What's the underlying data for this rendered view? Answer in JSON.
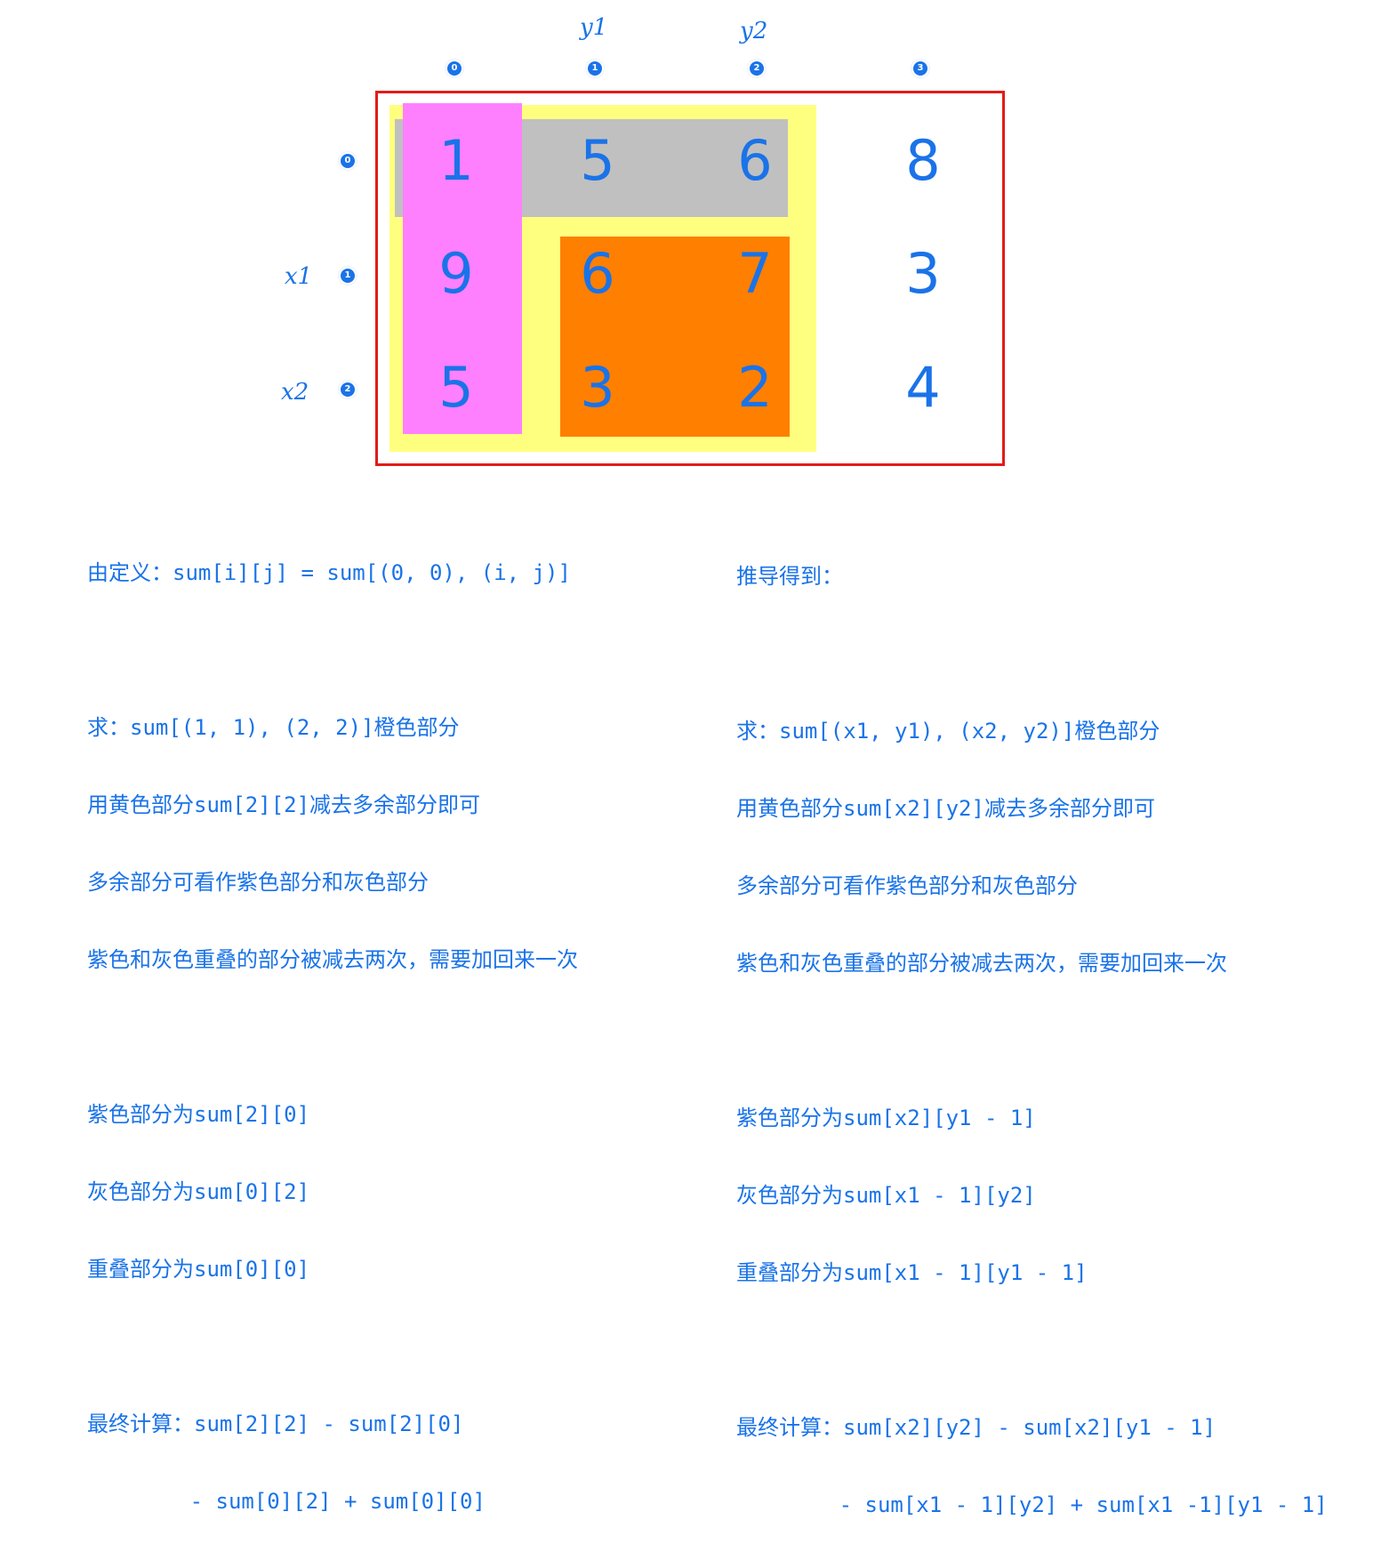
{
  "column_labels": {
    "y1": "y1",
    "y2": "y2"
  },
  "row_labels": {
    "x1": "x1",
    "x2": "x2"
  },
  "column_badges": [
    "0",
    "1",
    "2",
    "3"
  ],
  "row_badges": [
    "0",
    "1",
    "2"
  ],
  "matrix": [
    [
      "1",
      "5",
      "6",
      "8"
    ],
    [
      "9",
      "6",
      "7",
      "3"
    ],
    [
      "5",
      "3",
      "2",
      "4"
    ]
  ],
  "colors": {
    "frame": "#e21a1a",
    "yellow_region": "#ffff7f",
    "gray_region": "#c0c0c0",
    "orange_region": "#ff7f00",
    "purple_region": "#ff80ff",
    "text": "#1a73e8"
  },
  "left_text": {
    "line_1": "由定义：sum[i][j] = sum[(0, 0), (i, j)]",
    "line_2": "求：sum[(1, 1), (2, 2)]橙色部分",
    "line_3": "用黄色部分sum[2][2]减去多余部分即可",
    "line_4": "多余部分可看作紫色部分和灰色部分",
    "line_5": "紫色和灰色重叠的部分被减去两次，需要加回来一次",
    "line_6": "紫色部分为sum[2][0]",
    "line_7": "灰色部分为sum[0][2]",
    "line_8": "重叠部分为sum[0][0]",
    "line_9": "最终计算：sum[2][2] - sum[2][0]",
    "line_10": "        - sum[0][2] + sum[0][0]"
  },
  "right_text": {
    "line_1": "推导得到：",
    "line_2": "求：sum[(x1, y1), (x2, y2)]橙色部分",
    "line_3": "用黄色部分sum[x2][y2]减去多余部分即可",
    "line_4": "多余部分可看作紫色部分和灰色部分",
    "line_5": "紫色和灰色重叠的部分被减去两次，需要加回来一次",
    "line_6": "紫色部分为sum[x2][y1 - 1]",
    "line_7": "灰色部分为sum[x1 - 1][y2]",
    "line_8": "重叠部分为sum[x1 - 1][y1 - 1]",
    "line_9": "最终计算：sum[x2][y2] - sum[x2][y1 - 1]",
    "line_10": "        - sum[x1 - 1][y2] + sum[x1 -1][y1 - 1]"
  }
}
